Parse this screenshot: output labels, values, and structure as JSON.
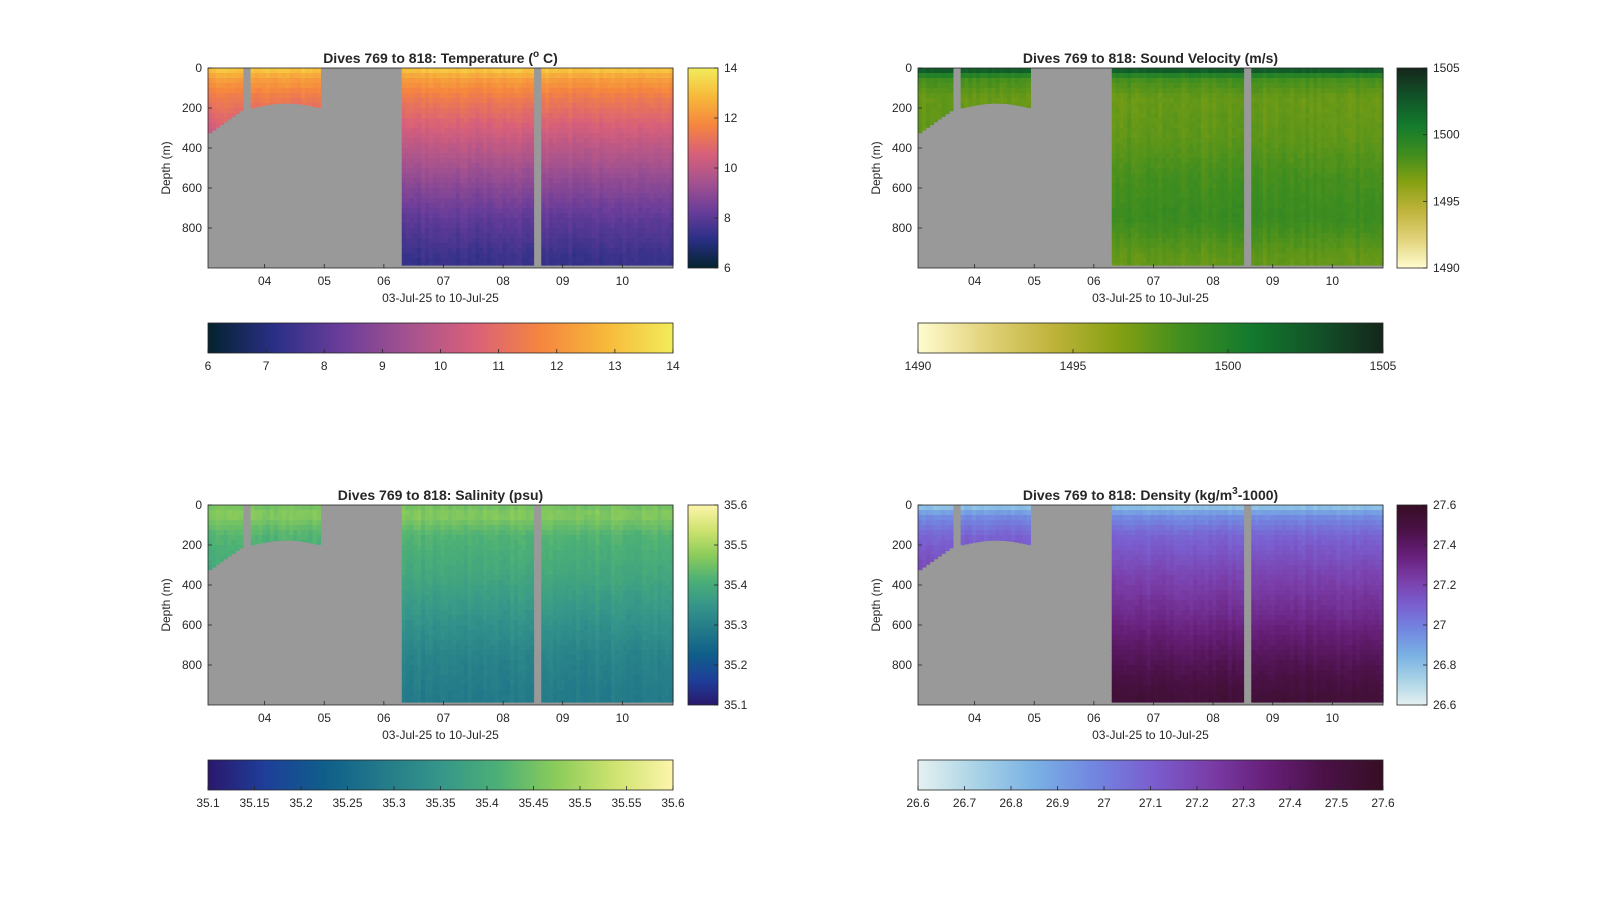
{
  "figure": {
    "background": "#ffffff",
    "nodata_color": "#999999"
  },
  "chart_data": [
    {
      "type": "heatmap",
      "title_main": "Dives 769 to 818: Temperature (",
      "title_sup": "o",
      "title_end": " C)",
      "xlabel": "03-Jul-25 to 10-Jul-25",
      "ylabel": "Depth (m)",
      "x_ticks": [
        "04",
        "05",
        "06",
        "07",
        "08",
        "09",
        "10"
      ],
      "x_range_days": [
        3.05,
        10.85
      ],
      "y_ticks": [
        "0",
        "200",
        "400",
        "600",
        "800"
      ],
      "ylim": [
        0,
        1000
      ],
      "y_reversed": true,
      "colormap": "thermal",
      "colormap_stops": [
        "#04232e",
        "#2a2f86",
        "#6a3d9a",
        "#a4528f",
        "#d8607a",
        "#f5853f",
        "#f7b93a",
        "#f2ec5a"
      ],
      "side_colorbar": {
        "range": [
          6,
          14
        ],
        "ticks": [
          "6",
          "8",
          "10",
          "12",
          "14"
        ]
      },
      "horizontal_colorbar": {
        "range": [
          6,
          14
        ],
        "ticks": [
          "6",
          "7",
          "8",
          "9",
          "10",
          "11",
          "12",
          "13",
          "14"
        ]
      },
      "profile_surface": [
        13.3,
        12.3,
        11.4,
        10.2,
        9.1,
        8.1,
        7.4
      ],
      "profile_depths": [
        0,
        50,
        150,
        350,
        550,
        750,
        950
      ]
    },
    {
      "type": "heatmap",
      "title_main": "Dives 769 to 818: Sound Velocity (m/s)",
      "title_sup": "",
      "title_end": "",
      "xlabel": "03-Jul-25 to 10-Jul-25",
      "ylabel": "Depth (m)",
      "x_ticks": [
        "04",
        "05",
        "06",
        "07",
        "08",
        "09",
        "10"
      ],
      "x_range_days": [
        3.05,
        10.85
      ],
      "y_ticks": [
        "0",
        "200",
        "400",
        "600",
        "800"
      ],
      "ylim": [
        0,
        1000
      ],
      "y_reversed": true,
      "colormap": "speed",
      "colormap_stops": [
        "#fffccf",
        "#e2d37c",
        "#c0b43c",
        "#86a112",
        "#3f8d1f",
        "#137a2d",
        "#125328",
        "#15261b"
      ],
      "side_colorbar": {
        "range": [
          1490,
          1505
        ],
        "ticks": [
          "1490",
          "1495",
          "1500",
          "1505"
        ]
      },
      "horizontal_colorbar": {
        "range": [
          1490,
          1505
        ],
        "ticks": [
          "1490",
          "1495",
          "1500",
          "1505"
        ]
      },
      "profile_surface": [
        1503.5,
        1498.5,
        1497.3,
        1497.6,
        1498.4,
        1498.8,
        1497.5
      ],
      "profile_depths": [
        0,
        50,
        150,
        350,
        550,
        750,
        950
      ]
    },
    {
      "type": "heatmap",
      "title_main": "Dives 769 to 818: Salinity (psu)",
      "title_sup": "",
      "title_end": "",
      "xlabel": "03-Jul-25 to 10-Jul-25",
      "ylabel": "Depth (m)",
      "x_ticks": [
        "04",
        "05",
        "06",
        "07",
        "08",
        "09",
        "10"
      ],
      "x_range_days": [
        3.05,
        10.85
      ],
      "y_ticks": [
        "0",
        "200",
        "400",
        "600",
        "800"
      ],
      "ylim": [
        0,
        1000
      ],
      "y_reversed": true,
      "colormap": "haline",
      "colormap_stops": [
        "#2a186c",
        "#1e3f9a",
        "#0f5e8a",
        "#237a89",
        "#35968a",
        "#4cb076",
        "#8ccc5a",
        "#cfe36f",
        "#fdf5ac"
      ],
      "side_colorbar": {
        "range": [
          35.1,
          35.6
        ],
        "ticks": [
          "35.1",
          "35.2",
          "35.3",
          "35.4",
          "35.5",
          "35.6"
        ]
      },
      "horizontal_colorbar": {
        "range": [
          35.1,
          35.6
        ],
        "ticks": [
          "35.1",
          "35.15",
          "35.2",
          "35.25",
          "35.3",
          "35.35",
          "35.4",
          "35.45",
          "35.5",
          "35.55",
          "35.6"
        ]
      },
      "profile_surface": [
        35.45,
        35.47,
        35.42,
        35.39,
        35.35,
        35.31,
        35.29
      ],
      "profile_depths": [
        0,
        50,
        150,
        350,
        550,
        750,
        950
      ]
    },
    {
      "type": "heatmap",
      "title_main": "Dives 769 to 818: Density (kg/m",
      "title_sup": "3",
      "title_end": "-1000)",
      "xlabel": "03-Jul-25 to 10-Jul-25",
      "ylabel": "Depth (m)",
      "x_ticks": [
        "04",
        "05",
        "06",
        "07",
        "08",
        "09",
        "10"
      ],
      "x_range_days": [
        3.05,
        10.85
      ],
      "y_ticks": [
        "0",
        "200",
        "400",
        "600",
        "800"
      ],
      "ylim": [
        0,
        1000
      ],
      "y_reversed": true,
      "colormap": "dense",
      "colormap_stops": [
        "#e6f1f1",
        "#a9d3e6",
        "#7ab1e4",
        "#7287e0",
        "#7a5fd0",
        "#7a3ea9",
        "#671f79",
        "#4a1146",
        "#360e24"
      ],
      "side_colorbar": {
        "range": [
          26.6,
          27.6
        ],
        "ticks": [
          "26.6",
          "26.8",
          "27",
          "27.2",
          "27.4",
          "27.6"
        ]
      },
      "horizontal_colorbar": {
        "range": [
          26.6,
          27.6
        ],
        "ticks": [
          "26.6",
          "26.7",
          "26.8",
          "26.9",
          "27",
          "27.1",
          "27.2",
          "27.3",
          "27.4",
          "27.5",
          "27.6"
        ]
      },
      "profile_surface": [
        26.75,
        26.95,
        27.08,
        27.2,
        27.3,
        27.42,
        27.52
      ],
      "profile_depths": [
        0,
        50,
        150,
        350,
        550,
        750,
        950
      ]
    }
  ]
}
